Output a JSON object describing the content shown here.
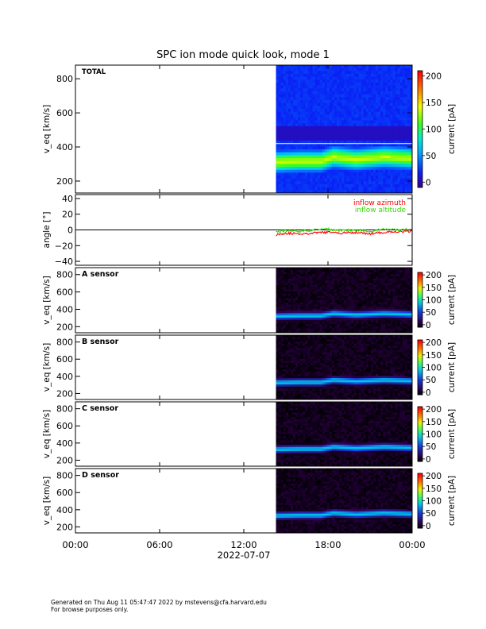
{
  "title": "SPC ion mode quick look, mode 1",
  "footer": {
    "line1": "Generated on Thu Aug 11 05:47:47 2022 by mstevens@cfa.harvard.edu",
    "line2": "For browse purposes only."
  },
  "colors": {
    "inflow_azimuth": "#ff0000",
    "inflow_altitude": "#33dd00",
    "background_spectrogram_total": "#0b1ff0",
    "background_spectrogram_sensor": "#000000"
  },
  "chart_data": [
    {
      "type": "heatmap",
      "panel_label": "TOTAL",
      "ylabel": "v_eq [km/s]",
      "ylim": [
        130,
        880
      ],
      "yticks": [
        "200",
        "400",
        "600",
        "800"
      ],
      "yticks_values": [
        200,
        400,
        600,
        800
      ],
      "xlim_hours": [
        0,
        24
      ],
      "data_start_hour": 14.3,
      "colorbar": {
        "label": "current [pA]",
        "ticks": [
          "0",
          "50",
          "100",
          "150",
          "200"
        ],
        "tick_values": [
          0,
          50,
          100,
          150,
          200
        ],
        "range": [
          -10,
          210
        ],
        "scale": "rainbow"
      },
      "colormap": "rainbow",
      "peak_velocity_profile": {
        "hours": [
          14.3,
          16,
          17.5,
          18.4,
          20,
          22,
          24
        ],
        "v": [
          315,
          320,
          320,
          345,
          330,
          345,
          335
        ]
      }
    },
    {
      "type": "line",
      "ylabel": "angle [°]",
      "ylim": [
        -45,
        45
      ],
      "yticks": [
        "40",
        "20",
        "0",
        "−20",
        "−40"
      ],
      "yticks_values": [
        40,
        20,
        0,
        -20,
        -40
      ],
      "legend": [
        "inflow azimuth",
        "inflow altitude"
      ],
      "legend_placement": "top-right",
      "series": [
        {
          "name": "inflow azimuth",
          "x_hours": [
            14.3,
            15,
            16,
            17,
            18,
            19,
            20,
            21,
            22,
            23,
            24
          ],
          "values": [
            -6,
            -4,
            -5,
            -4,
            -3,
            -4,
            -3,
            -5,
            -3,
            -2,
            -2
          ]
        },
        {
          "name": "inflow altitude",
          "x_hours": [
            14.3,
            15,
            16,
            17,
            18,
            19,
            20,
            21,
            22,
            23,
            24
          ],
          "values": [
            -3,
            -1,
            -2,
            0,
            1,
            -1,
            0,
            -2,
            1,
            0,
            1
          ]
        }
      ]
    },
    {
      "type": "heatmap",
      "panel_label": "A sensor",
      "ylabel": "v_eq [km/s]",
      "ylim": [
        130,
        880
      ],
      "yticks": [
        "200",
        "400",
        "600",
        "800"
      ],
      "yticks_values": [
        200,
        400,
        600,
        800
      ],
      "xlim_hours": [
        0,
        24
      ],
      "data_start_hour": 14.3,
      "colorbar": {
        "label": "current [pA]",
        "ticks": [
          "0",
          "50",
          "100",
          "150",
          "200"
        ],
        "tick_values": [
          0,
          50,
          100,
          150,
          200
        ],
        "range": [
          -10,
          210
        ],
        "scale": "inferno-like"
      },
      "colormap": "sensor",
      "peak_velocity_profile": {
        "hours": [
          14.3,
          16,
          17.5,
          18.4,
          20,
          22,
          24
        ],
        "v": [
          320,
          325,
          325,
          350,
          335,
          350,
          340
        ]
      }
    },
    {
      "type": "heatmap",
      "panel_label": "B sensor",
      "ylabel": "v_eq [km/s]",
      "ylim": [
        130,
        880
      ],
      "yticks": [
        "200",
        "400",
        "600",
        "800"
      ],
      "yticks_values": [
        200,
        400,
        600,
        800
      ],
      "xlim_hours": [
        0,
        24
      ],
      "data_start_hour": 14.3,
      "colorbar": {
        "label": "current [pA]",
        "ticks": [
          "0",
          "50",
          "100",
          "150",
          "200"
        ],
        "tick_values": [
          0,
          50,
          100,
          150,
          200
        ],
        "range": [
          -10,
          210
        ],
        "scale": "inferno-like"
      },
      "colormap": "sensor",
      "peak_velocity_profile": {
        "hours": [
          14.3,
          16,
          17.5,
          18.4,
          20,
          22,
          24
        ],
        "v": [
          325,
          330,
          330,
          355,
          340,
          355,
          345
        ]
      }
    },
    {
      "type": "heatmap",
      "panel_label": "C sensor",
      "ylabel": "v_eq [km/s]",
      "ylim": [
        130,
        880
      ],
      "yticks": [
        "200",
        "400",
        "600",
        "800"
      ],
      "yticks_values": [
        200,
        400,
        600,
        800
      ],
      "xlim_hours": [
        0,
        24
      ],
      "data_start_hour": 14.3,
      "colorbar": {
        "label": "current [pA]",
        "ticks": [
          "0",
          "50",
          "100",
          "150",
          "200"
        ],
        "tick_values": [
          0,
          50,
          100,
          150,
          200
        ],
        "range": [
          -10,
          210
        ],
        "scale": "inferno-like"
      },
      "colormap": "sensor",
      "peak_velocity_profile": {
        "hours": [
          14.3,
          16,
          17.5,
          18.4,
          20,
          22,
          24
        ],
        "v": [
          325,
          330,
          330,
          355,
          340,
          355,
          345
        ]
      }
    },
    {
      "type": "heatmap",
      "panel_label": "D sensor",
      "ylabel": "v_eq [km/s]",
      "ylim": [
        130,
        880
      ],
      "yticks": [
        "200",
        "400",
        "600",
        "800"
      ],
      "yticks_values": [
        200,
        400,
        600,
        800
      ],
      "xlim_hours": [
        0,
        24
      ],
      "data_start_hour": 14.3,
      "colorbar": {
        "label": "current [pA]",
        "ticks": [
          "0",
          "50",
          "100",
          "150",
          "200"
        ],
        "tick_values": [
          0,
          50,
          100,
          150,
          200
        ],
        "range": [
          -10,
          210
        ],
        "scale": "inferno-like"
      },
      "colormap": "sensor",
      "peak_velocity_profile": {
        "hours": [
          14.3,
          16,
          17.5,
          18.4,
          20,
          22,
          24
        ],
        "v": [
          330,
          335,
          335,
          360,
          345,
          360,
          350
        ]
      }
    }
  ],
  "x_axis": {
    "ticks": [
      "00:00",
      "06:00",
      "12:00",
      "18:00",
      "00:00"
    ],
    "tick_hours": [
      0,
      6,
      12,
      18,
      24
    ],
    "date_label": "2022-07-07"
  }
}
